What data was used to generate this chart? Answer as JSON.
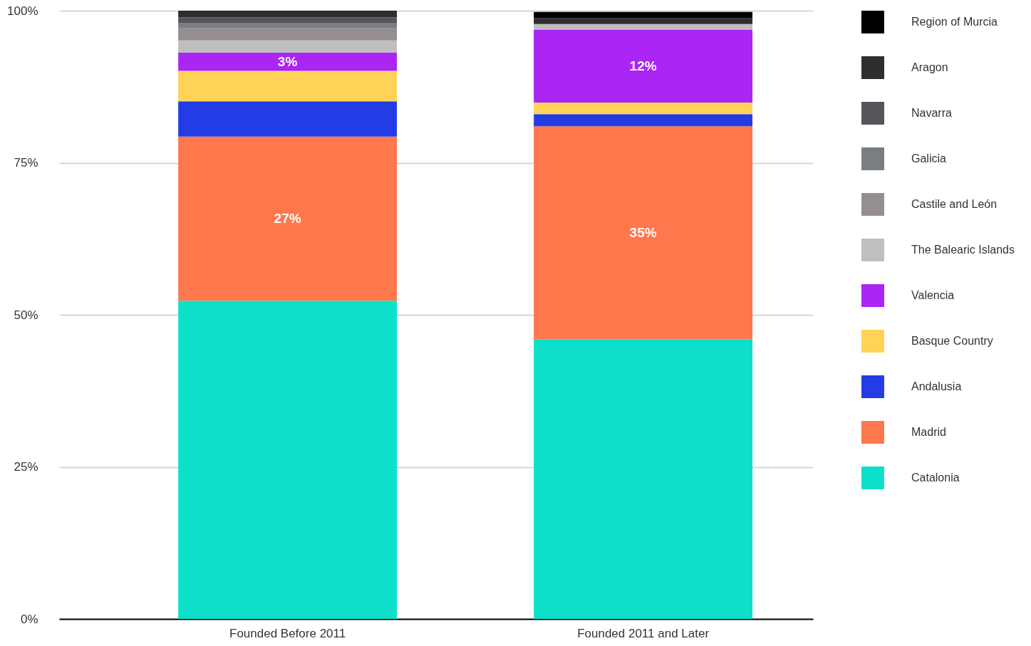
{
  "chart_data": {
    "type": "bar",
    "stacked": true,
    "categories": [
      "Founded Before 2011",
      "Founded 2011 and Later"
    ],
    "ylim": [
      0,
      100
    ],
    "yticks": [
      {
        "value": 0,
        "label": "0%"
      },
      {
        "value": 25,
        "label": "25%"
      },
      {
        "value": 50,
        "label": "50%"
      },
      {
        "value": 75,
        "label": "75%"
      },
      {
        "value": 100,
        "label": "100%"
      }
    ],
    "grid": "y",
    "legend": "right",
    "series": [
      {
        "name": "Catalonia",
        "color": "#0ce0cb",
        "values": [
          52.3,
          46.0
        ]
      },
      {
        "name": "Madrid",
        "color": "#ff774d",
        "values": [
          27,
          35
        ],
        "value_labels": [
          "27%",
          "35%"
        ]
      },
      {
        "name": "Andalusia",
        "color": "#243ce6",
        "values": [
          5.8,
          2.0
        ]
      },
      {
        "name": "Basque Country",
        "color": "#ffd358",
        "values": [
          5.0,
          1.9
        ]
      },
      {
        "name": "Valencia",
        "color": "#ab25f5",
        "values": [
          3,
          12
        ],
        "value_labels": [
          "3%",
          "12%"
        ]
      },
      {
        "name": "The Balearic Islands",
        "color": "#bfbfbf",
        "values": [
          2.0,
          0.9
        ]
      },
      {
        "name": "Castile and León",
        "color": "#948f8e",
        "values": [
          2.0,
          null
        ]
      },
      {
        "name": "Galicia",
        "color": "#7a7d82",
        "values": [
          0.9,
          null
        ]
      },
      {
        "name": "Navarra",
        "color": "#56555a",
        "values": [
          0.9,
          null
        ]
      },
      {
        "name": "Aragon",
        "color": "#2e2e30",
        "values": [
          1.1,
          1.0
        ]
      },
      {
        "name": "Region of Murcia",
        "color": "#000000",
        "values": [
          null,
          1.0
        ]
      }
    ]
  }
}
